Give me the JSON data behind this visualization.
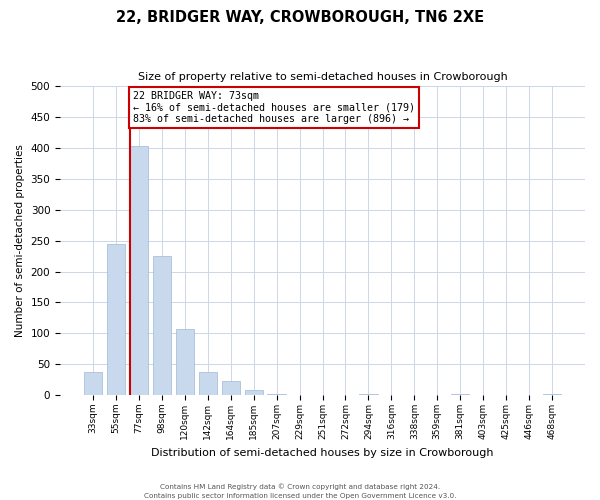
{
  "title_line1": "22, BRIDGER WAY, CROWBOROUGH, TN6 2XE",
  "title_line2": "Size of property relative to semi-detached houses in Crowborough",
  "xlabel": "Distribution of semi-detached houses by size in Crowborough",
  "ylabel": "Number of semi-detached properties",
  "bin_labels": [
    "33sqm",
    "55sqm",
    "77sqm",
    "98sqm",
    "120sqm",
    "142sqm",
    "164sqm",
    "185sqm",
    "207sqm",
    "229sqm",
    "251sqm",
    "272sqm",
    "294sqm",
    "316sqm",
    "338sqm",
    "359sqm",
    "381sqm",
    "403sqm",
    "425sqm",
    "446sqm",
    "468sqm"
  ],
  "bar_values": [
    37,
    245,
    403,
    225,
    107,
    37,
    23,
    8,
    2,
    0,
    0,
    0,
    2,
    0,
    0,
    0,
    2,
    0,
    0,
    0,
    2
  ],
  "bar_color": "#c9d9ed",
  "bar_edge_color": "#a0b8d8",
  "vline_color": "#cc0000",
  "annotation_title": "22 BRIDGER WAY: 73sqm",
  "annotation_line1": "← 16% of semi-detached houses are smaller (179)",
  "annotation_line2": "83% of semi-detached houses are larger (896) →",
  "annotation_box_color": "#ffffff",
  "annotation_box_edge_color": "#cc0000",
  "ylim": [
    0,
    500
  ],
  "footnote1": "Contains HM Land Registry data © Crown copyright and database right 2024.",
  "footnote2": "Contains public sector information licensed under the Open Government Licence v3.0."
}
